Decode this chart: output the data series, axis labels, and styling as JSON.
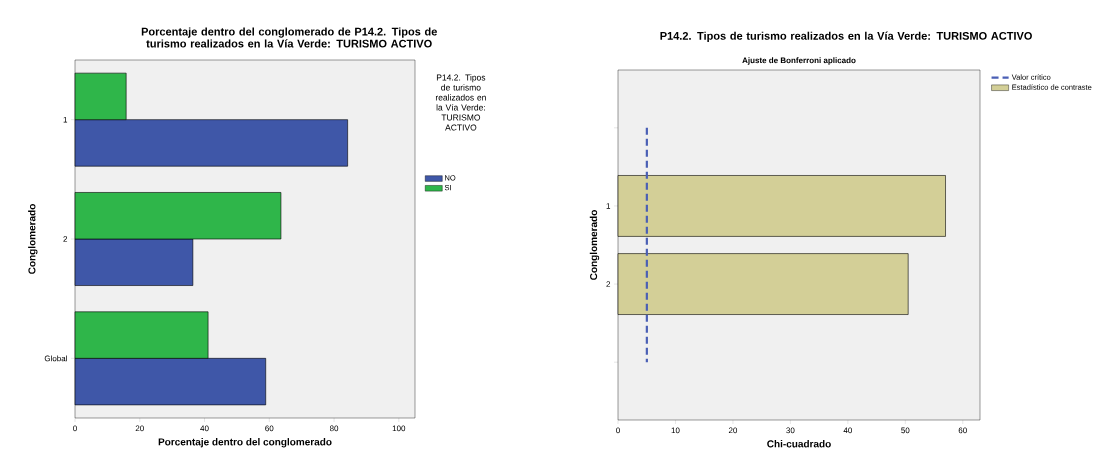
{
  "chart_data": [
    {
      "type": "bar",
      "orientation": "horizontal",
      "title": "Porcentaje dentro del conglomerado de P14.2. Tipos de turismo realizados en la Vía Verde: TURISMO ACTIVO",
      "xlabel": "Porcentaje dentro del conglomerado",
      "ylabel": "Conglomerado",
      "categories": [
        "1",
        "2",
        "Global"
      ],
      "legend_title": "P14.2. Tipos de turismo realizados en la Vía Verde: TURISMO ACTIVO",
      "legend": "top right",
      "xlim": [
        0,
        105
      ],
      "xticks": [
        0,
        20,
        40,
        60,
        80,
        100
      ],
      "series": [
        {
          "name": "NO",
          "color": "#3f57a8",
          "values": [
            84.2,
            36.4,
            58.9
          ]
        },
        {
          "name": "SI",
          "color": "#2fb64a",
          "values": [
            15.8,
            63.6,
            41.1
          ]
        }
      ]
    },
    {
      "type": "bar",
      "orientation": "horizontal",
      "title": "P14.2. Tipos de turismo realizados en la Vía Verde: TURISMO ACTIVO",
      "subtitle": "Ajuste de Bonferroni aplicado",
      "xlabel": "Chi-cuadrado",
      "ylabel": "Conglomerado",
      "categories": [
        null,
        "1",
        "2",
        null
      ],
      "legend": "top right",
      "xlim": [
        0,
        63
      ],
      "xticks": [
        0,
        10,
        20,
        30,
        40,
        50,
        60
      ],
      "ref_lines": [
        {
          "axis": "x",
          "value": 5.02,
          "label": "Valor crítico",
          "color": "#4a5fb5",
          "line_style": "dashed"
        }
      ],
      "series": [
        {
          "name": "Estadístico de contraste",
          "color": "#d3cf97",
          "values": [
            null,
            57.0,
            50.5,
            null
          ]
        }
      ]
    }
  ]
}
